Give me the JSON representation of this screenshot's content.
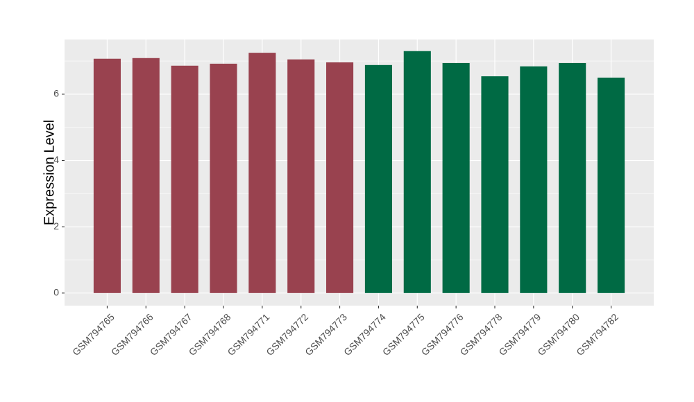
{
  "chart_data": {
    "type": "bar",
    "y_label": "Expression Level",
    "categories": [
      "GSM794765",
      "GSM794766",
      "GSM794767",
      "GSM794768",
      "GSM794771",
      "GSM794772",
      "GSM794773",
      "GSM794774",
      "GSM794775",
      "GSM794776",
      "GSM794778",
      "GSM794779",
      "GSM794780",
      "GSM794782"
    ],
    "values": [
      7.07,
      7.09,
      6.86,
      6.92,
      7.25,
      7.05,
      6.96,
      6.88,
      7.3,
      6.94,
      6.54,
      6.84,
      6.94,
      6.5
    ],
    "colors": [
      "#99424f",
      "#99424f",
      "#99424f",
      "#99424f",
      "#99424f",
      "#99424f",
      "#99424f",
      "#006a44",
      "#006a44",
      "#006a44",
      "#006a44",
      "#006a44",
      "#006a44",
      "#006a44"
    ],
    "ylim": [
      -0.38,
      7.65
    ],
    "yticks": [
      0,
      2,
      4,
      6
    ],
    "minor_yticks": [
      1,
      3,
      5,
      7
    ],
    "grid": true,
    "panel_background": "#ebebeb"
  }
}
